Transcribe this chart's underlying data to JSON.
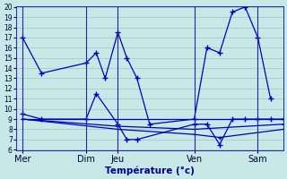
{
  "background_color": "#c8e8e8",
  "grid_color": "#99bbbb",
  "line_color": "#0000bb",
  "ylim": [
    6,
    20
  ],
  "yticks": [
    6,
    7,
    8,
    9,
    10,
    11,
    12,
    13,
    14,
    15,
    16,
    17,
    18,
    19,
    20
  ],
  "xlabel": "Température (°c)",
  "xlabel_color": "#000088",
  "x_day_labels": [
    "Mer",
    "Dim",
    "Jeu",
    "Ven",
    "Sam"
  ],
  "x_day_positions": [
    0.0,
    5.0,
    7.5,
    13.5,
    18.5
  ],
  "xlim": [
    -0.5,
    20.5
  ],
  "series_A": {
    "x": [
      0,
      1.5,
      5.0,
      5.8,
      6.5,
      7.5,
      8.2,
      9.0,
      10.0,
      13.5,
      14.5,
      15.5,
      16.5,
      17.5,
      18.5,
      19.5
    ],
    "y": [
      17,
      13.5,
      14.5,
      15.5,
      13.0,
      17.5,
      15.0,
      13.0,
      8.5,
      9.0,
      16.0,
      15.5,
      19.5,
      20.0,
      17.0,
      11.0
    ]
  },
  "series_B": {
    "x": [
      0,
      1.5,
      5.0,
      5.8,
      7.5,
      8.2,
      9.0,
      13.5,
      14.5,
      15.5,
      16.5,
      17.5,
      18.5,
      19.5,
      20.5
    ],
    "y": [
      9.5,
      9.0,
      9.0,
      11.5,
      8.5,
      7.0,
      7.0,
      8.5,
      8.5,
      6.5,
      9.0,
      9.0,
      9.0,
      9.0,
      9.0
    ]
  },
  "series_C": {
    "x": [
      0,
      20.5
    ],
    "y": [
      9.0,
      9.0
    ]
  },
  "series_D": {
    "x": [
      0,
      7.5,
      13.5,
      20.5
    ],
    "y": [
      9.0,
      8.3,
      8.0,
      8.5
    ]
  },
  "series_E": {
    "x": [
      0,
      7.5,
      13.5,
      15.5,
      20.5
    ],
    "y": [
      9.0,
      8.0,
      7.5,
      7.2,
      8.0
    ]
  }
}
